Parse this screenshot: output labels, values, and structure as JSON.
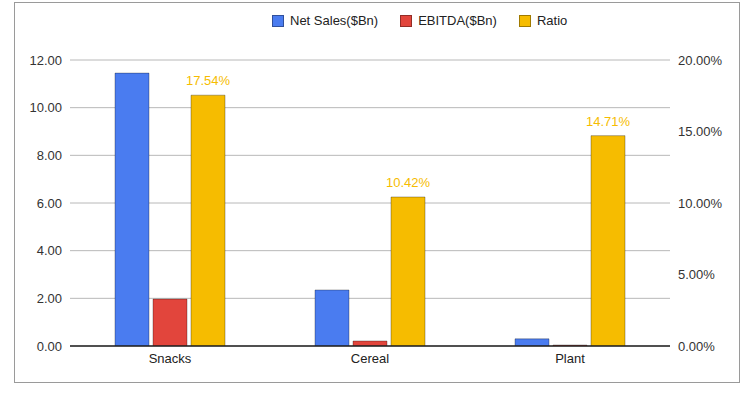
{
  "chart_data": {
    "type": "bar",
    "categories": [
      "Snacks",
      "Cereal",
      "Plant"
    ],
    "series": [
      {
        "name": "Net Sales($Bn)",
        "color": "#4a7cf0",
        "values": [
          11.45,
          2.35,
          0.3
        ]
      },
      {
        "name": "EBITDA($Bn)",
        "color": "#e2453c",
        "values": [
          1.97,
          0.21,
          0.04
        ]
      },
      {
        "name": "Ratio",
        "color": "#f6bc00",
        "axis": "y2",
        "values": [
          17.54,
          10.42,
          14.71
        ],
        "value_labels": [
          "17.54%",
          "10.42%",
          "14.71%"
        ],
        "data_labels": true
      }
    ],
    "ylim": [
      0,
      12
    ],
    "yticks": [
      {
        "value": 0,
        "label": "0.00"
      },
      {
        "value": 2,
        "label": "2.00"
      },
      {
        "value": 4,
        "label": "4.00"
      },
      {
        "value": 6,
        "label": "6.00"
      },
      {
        "value": 8,
        "label": "8.00"
      },
      {
        "value": 10,
        "label": "10.00"
      },
      {
        "value": 12,
        "label": "12.00"
      }
    ],
    "y2lim": [
      0,
      20
    ],
    "y2ticks": [
      {
        "value": 0,
        "label": "0.00%"
      },
      {
        "value": 5,
        "label": "5.00%"
      },
      {
        "value": 10,
        "label": "10.00%"
      },
      {
        "value": 15,
        "label": "15.00%"
      },
      {
        "value": 20,
        "label": "20.00%"
      }
    ],
    "grid": true,
    "legend": "top"
  }
}
